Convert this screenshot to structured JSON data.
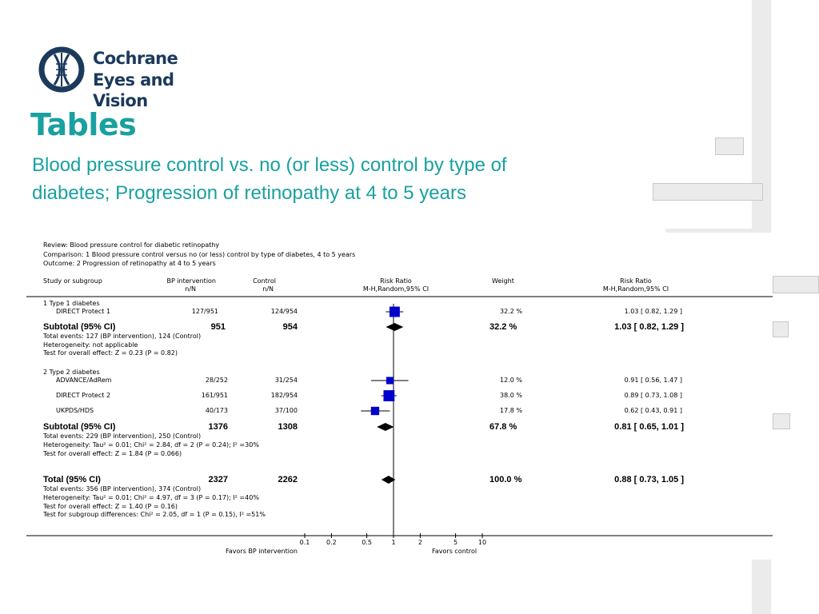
{
  "header": {
    "logo_line1": "Cochrane",
    "logo_line2": "Eyes and Vision",
    "title": "Tables",
    "subtitle_line1": "Blood pressure control vs. no (or less) control by type of",
    "subtitle_line2": "diabetes; Progression of retinopathy at 4 to 5 years"
  },
  "colors": {
    "teal": "#1aa0a0",
    "navy": "#1b3a5c",
    "marker": "#0000cc"
  },
  "forest": {
    "review": "Review:   Blood pressure control for diabetic retinopathy",
    "comparison": "Comparison:   1 Blood pressure control versus no (or less) control by type of diabetes, 4 to 5 years",
    "outcome": "Outcome:   2 Progression of retinopathy at 4 to 5 years",
    "col_study": "Study or subgroup",
    "col_bp": "BP intervention",
    "col_bp_sub": "n/N",
    "col_control": "Control",
    "col_control_sub": "n/N",
    "col_rr": "Risk Ratio",
    "col_rr_sub": "M-H,Random,95% CI",
    "col_weight": "Weight",
    "col_rr2": "Risk Ratio",
    "col_rr2_sub": "M-H,Random,95% CI",
    "groups": [
      {
        "label": "1 Type 1 diabetes",
        "studies": [
          {
            "name": "DIRECT Protect 1",
            "bp": "127/951",
            "ctrl": "124/954",
            "weight": "32.2 %",
            "ci": "1.03 [ 0.82, 1.29 ]"
          }
        ],
        "subtotal": {
          "label": "Subtotal (95% CI)",
          "bp": "951",
          "ctrl": "954",
          "weight": "32.2 %",
          "ci": "1.03 [ 0.82, 1.29 ]"
        },
        "notes": [
          "Total events: 127 (BP intervention), 124 (Control)",
          "Heterogeneity: not applicable",
          "Test for overall effect: Z = 0.23 (P = 0.82)"
        ]
      },
      {
        "label": "2 Type 2 diabetes",
        "studies": [
          {
            "name": "ADVANCE/AdRem",
            "bp": "28/252",
            "ctrl": "31/254",
            "weight": "12.0 %",
            "ci": "0.91 [ 0.56, 1.47 ]"
          },
          {
            "name": "DIRECT Protect 2",
            "bp": "161/951",
            "ctrl": "182/954",
            "weight": "38.0 %",
            "ci": "0.89 [ 0.73, 1.08 ]"
          },
          {
            "name": "UKPDS/HDS",
            "bp": "40/173",
            "ctrl": "37/100",
            "weight": "17.8 %",
            "ci": "0.62 [ 0.43, 0.91 ]"
          }
        ],
        "subtotal": {
          "label": "Subtotal (95% CI)",
          "bp": "1376",
          "ctrl": "1308",
          "weight": "67.8 %",
          "ci": "0.81 [ 0.65, 1.01 ]"
        },
        "notes": [
          "Total events: 229 (BP intervention), 250 (Control)",
          "Heterogeneity: Tau² = 0.01; Chi² = 2.84, df = 2 (P = 0.24); I² =30%",
          "Test for overall effect: Z = 1.84 (P = 0.066)"
        ]
      }
    ],
    "total": {
      "label": "Total (95% CI)",
      "bp": "2327",
      "ctrl": "2262",
      "weight": "100.0 %",
      "ci": "0.88 [ 0.73, 1.05 ]"
    },
    "total_notes": [
      "Total events: 356 (BP intervention), 374 (Control)",
      "Heterogeneity: Tau² = 0.01; Chi² = 4.97, df = 3 (P = 0.17); I² =40%",
      "Test for overall effect: Z = 1.40 (P = 0.16)",
      "Test for subgroup differences: Chi² = 2.05, df = 1 (P = 0.15), I² =51%"
    ],
    "axis_ticks": [
      "0.1",
      "0.2",
      "0.5",
      "1",
      "2",
      "5",
      "10"
    ],
    "favors_left": "Favors BP intervention",
    "favors_right": "Favors control"
  },
  "chart_data": {
    "type": "forest",
    "scale": "log",
    "xlim": [
      0.1,
      10
    ],
    "ticks": [
      0.1,
      0.2,
      0.5,
      1,
      2,
      5,
      10
    ],
    "studies": [
      {
        "name": "DIRECT Protect 1",
        "rr": 1.03,
        "lo": 0.82,
        "hi": 1.29,
        "weight": 32.2
      },
      {
        "name": "ADVANCE/AdRem",
        "rr": 0.91,
        "lo": 0.56,
        "hi": 1.47,
        "weight": 12.0
      },
      {
        "name": "DIRECT Protect 2",
        "rr": 0.89,
        "lo": 0.73,
        "hi": 1.08,
        "weight": 38.0
      },
      {
        "name": "UKPDS/HDS",
        "rr": 0.62,
        "lo": 0.43,
        "hi": 0.91,
        "weight": 17.8
      }
    ],
    "pooled": [
      {
        "name": "Subtotal (95% CI) 1",
        "rr": 1.03,
        "lo": 0.82,
        "hi": 1.29
      },
      {
        "name": "Subtotal (95% CI) 2",
        "rr": 0.81,
        "lo": 0.65,
        "hi": 1.01
      },
      {
        "name": "Total (95% CI)",
        "rr": 0.88,
        "lo": 0.73,
        "hi": 1.05
      }
    ]
  }
}
